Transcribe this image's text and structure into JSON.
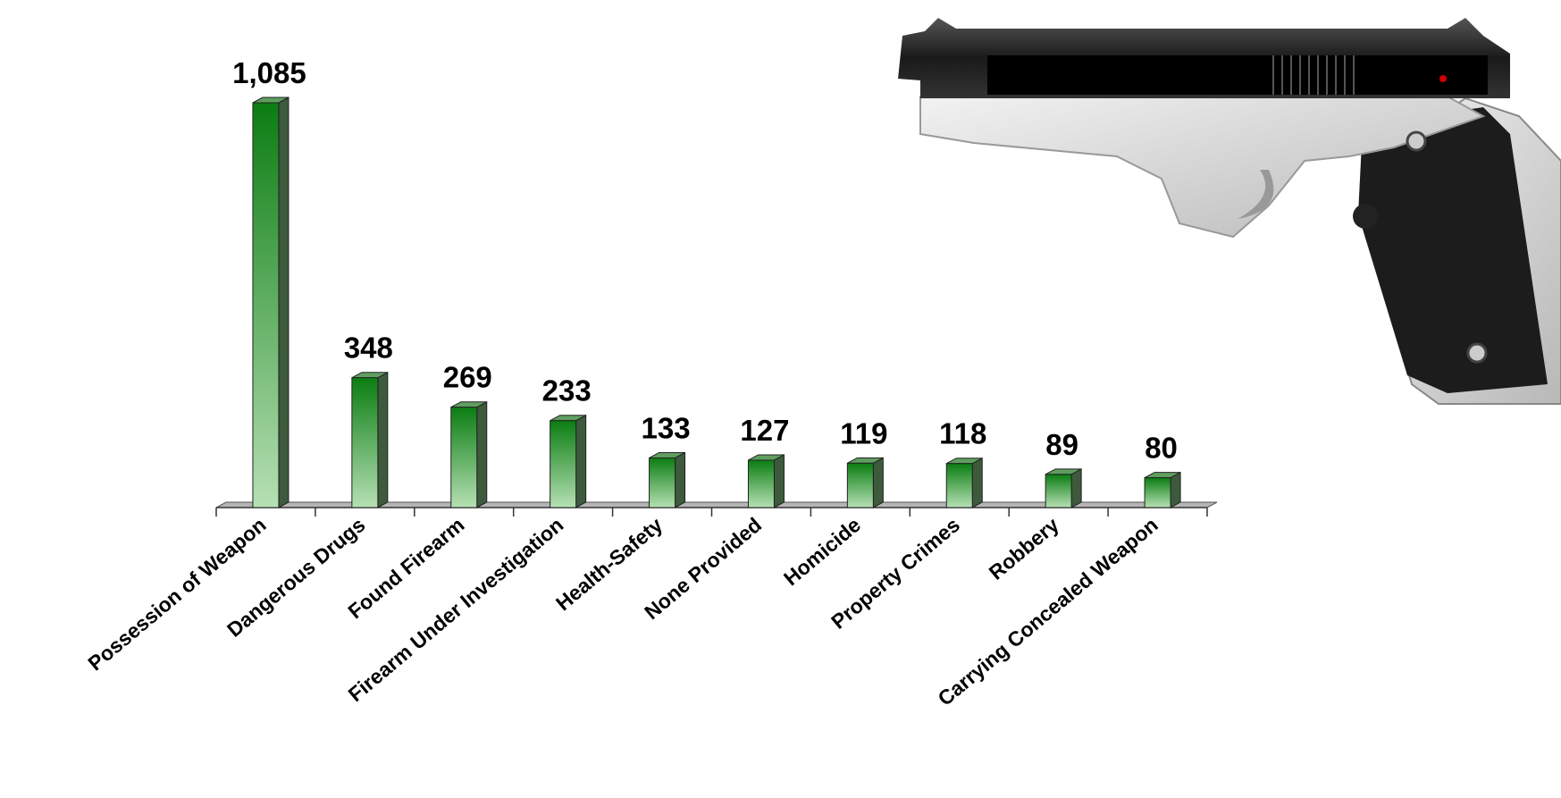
{
  "chart_data": {
    "type": "bar3d",
    "categories": [
      "Possession of Weapon",
      "Dangerous Drugs",
      "Found Firearm",
      "Firearm Under Investigation",
      "Health-Safety",
      "None Provided",
      "Homicide",
      "Property Crimes",
      "Robbery",
      "Carrying Concealed Weapon"
    ],
    "values": [
      1085,
      348,
      269,
      233,
      133,
      127,
      119,
      118,
      89,
      80
    ],
    "value_labels": [
      "1,085",
      "348",
      "269",
      "233",
      "133",
      "127",
      "119",
      "118",
      "89",
      "80"
    ],
    "color": "#0b7d12"
  }
}
